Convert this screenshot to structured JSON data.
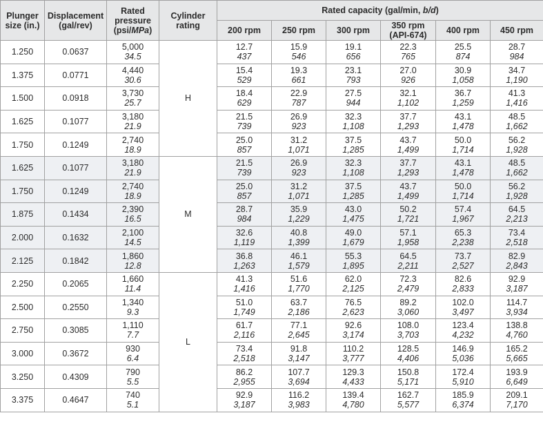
{
  "table": {
    "header": {
      "plunger_size": "Plunger size (in.)",
      "displacement": "Displacement (gal/rev)",
      "rated_pressure": [
        "Rated pressure (psi/",
        "MPa",
        ")"
      ],
      "cylinder_rating": "Cylinder rating",
      "rated_capacity": [
        "Rated capacity (gal/min, ",
        "b/d",
        ")"
      ],
      "speeds": [
        "200 rpm",
        "250 rpm",
        "300 rpm",
        "350 rpm (API-674)",
        "400 rpm",
        "450 rpm"
      ]
    },
    "groups": [
      {
        "rating": "H",
        "rows": [
          {
            "size": "1.250",
            "displacement": "0.0637",
            "pressure": [
              "5,000",
              "34.5"
            ],
            "capacity": [
              [
                "12.7",
                "437"
              ],
              [
                "15.9",
                "546"
              ],
              [
                "19.1",
                "656"
              ],
              [
                "22.3",
                "765"
              ],
              [
                "25.5",
                "874"
              ],
              [
                "28.7",
                "984"
              ]
            ]
          },
          {
            "size": "1.375",
            "displacement": "0.0771",
            "pressure": [
              "4,440",
              "30.6"
            ],
            "capacity": [
              [
                "15.4",
                "529"
              ],
              [
                "19.3",
                "661"
              ],
              [
                "23.1",
                "793"
              ],
              [
                "27.0",
                "926"
              ],
              [
                "30.9",
                "1,058"
              ],
              [
                "34.7",
                "1,190"
              ]
            ]
          },
          {
            "size": "1.500",
            "displacement": "0.0918",
            "pressure": [
              "3,730",
              "25.7"
            ],
            "capacity": [
              [
                "18.4",
                "629"
              ],
              [
                "22.9",
                "787"
              ],
              [
                "27.5",
                "944"
              ],
              [
                "32.1",
                "1,102"
              ],
              [
                "36.7",
                "1,259"
              ],
              [
                "41.3",
                "1,416"
              ]
            ]
          },
          {
            "size": "1.625",
            "displacement": "0.1077",
            "pressure": [
              "3,180",
              "21.9"
            ],
            "capacity": [
              [
                "21.5",
                "739"
              ],
              [
                "26.9",
                "923"
              ],
              [
                "32.3",
                "1,108"
              ],
              [
                "37.7",
                "1,293"
              ],
              [
                "43.1",
                "1,478"
              ],
              [
                "48.5",
                "1,662"
              ]
            ]
          },
          {
            "size": "1.750",
            "displacement": "0.1249",
            "pressure": [
              "2,740",
              "18.9"
            ],
            "capacity": [
              [
                "25.0",
                "857"
              ],
              [
                "31.2",
                "1,071"
              ],
              [
                "37.5",
                "1,285"
              ],
              [
                "43.7",
                "1,499"
              ],
              [
                "50.0",
                "1,714"
              ],
              [
                "56.2",
                "1,928"
              ]
            ]
          }
        ]
      },
      {
        "rating": "M",
        "rows": [
          {
            "size": "1.625",
            "displacement": "0.1077",
            "pressure": [
              "3,180",
              "21.9"
            ],
            "capacity": [
              [
                "21.5",
                "739"
              ],
              [
                "26.9",
                "923"
              ],
              [
                "32.3",
                "1,108"
              ],
              [
                "37.7",
                "1,293"
              ],
              [
                "43.1",
                "1,478"
              ],
              [
                "48.5",
                "1,662"
              ]
            ]
          },
          {
            "size": "1.750",
            "displacement": "0.1249",
            "pressure": [
              "2,740",
              "18.9"
            ],
            "capacity": [
              [
                "25.0",
                "857"
              ],
              [
                "31.2",
                "1,071"
              ],
              [
                "37.5",
                "1,285"
              ],
              [
                "43.7",
                "1,499"
              ],
              [
                "50.0",
                "1,714"
              ],
              [
                "56.2",
                "1,928"
              ]
            ]
          },
          {
            "size": "1.875",
            "displacement": "0.1434",
            "pressure": [
              "2,390",
              "16.5"
            ],
            "capacity": [
              [
                "28.7",
                "984"
              ],
              [
                "35.9",
                "1,229"
              ],
              [
                "43.0",
                "1,475"
              ],
              [
                "50.2",
                "1,721"
              ],
              [
                "57.4",
                "1,967"
              ],
              [
                "64.5",
                "2,213"
              ]
            ]
          },
          {
            "size": "2.000",
            "displacement": "0.1632",
            "pressure": [
              "2,100",
              "14.5"
            ],
            "capacity": [
              [
                "32.6",
                "1,119"
              ],
              [
                "40.8",
                "1,399"
              ],
              [
                "49.0",
                "1,679"
              ],
              [
                "57.1",
                "1,958"
              ],
              [
                "65.3",
                "2,238"
              ],
              [
                "73.4",
                "2,518"
              ]
            ]
          },
          {
            "size": "2.125",
            "displacement": "0.1842",
            "pressure": [
              "1,860",
              "12.8"
            ],
            "capacity": [
              [
                "36.8",
                "1,263"
              ],
              [
                "46.1",
                "1,579"
              ],
              [
                "55.3",
                "1,895"
              ],
              [
                "64.5",
                "2,211"
              ],
              [
                "73.7",
                "2,527"
              ],
              [
                "82.9",
                "2,843"
              ]
            ]
          }
        ]
      },
      {
        "rating": "L",
        "rows": [
          {
            "size": "2.250",
            "displacement": "0.2065",
            "pressure": [
              "1,660",
              "11.4"
            ],
            "capacity": [
              [
                "41.3",
                "1,416"
              ],
              [
                "51.6",
                "1,770"
              ],
              [
                "62.0",
                "2,125"
              ],
              [
                "72.3",
                "2,479"
              ],
              [
                "82.6",
                "2,833"
              ],
              [
                "92.9",
                "3,187"
              ]
            ]
          },
          {
            "size": "2.500",
            "displacement": "0.2550",
            "pressure": [
              "1,340",
              "9.3"
            ],
            "capacity": [
              [
                "51.0",
                "1,749"
              ],
              [
                "63.7",
                "2,186"
              ],
              [
                "76.5",
                "2,623"
              ],
              [
                "89.2",
                "3,060"
              ],
              [
                "102.0",
                "3,497"
              ],
              [
                "114.7",
                "3,934"
              ]
            ]
          },
          {
            "size": "2.750",
            "displacement": "0.3085",
            "pressure": [
              "1,110",
              "7.7"
            ],
            "capacity": [
              [
                "61.7",
                "2,116"
              ],
              [
                "77.1",
                "2,645"
              ],
              [
                "92.6",
                "3,174"
              ],
              [
                "108.0",
                "3,703"
              ],
              [
                "123.4",
                "4,232"
              ],
              [
                "138.8",
                "4,760"
              ]
            ]
          },
          {
            "size": "3.000",
            "displacement": "0.3672",
            "pressure": [
              "930",
              "6.4"
            ],
            "capacity": [
              [
                "73.4",
                "2,518"
              ],
              [
                "91.8",
                "3,147"
              ],
              [
                "110.2",
                "3,777"
              ],
              [
                "128.5",
                "4,406"
              ],
              [
                "146.9",
                "5,036"
              ],
              [
                "165.2",
                "5,665"
              ]
            ]
          },
          {
            "size": "3.250",
            "displacement": "0.4309",
            "pressure": [
              "790",
              "5.5"
            ],
            "capacity": [
              [
                "86.2",
                "2,955"
              ],
              [
                "107.7",
                "3,694"
              ],
              [
                "129.3",
                "4,433"
              ],
              [
                "150.8",
                "5,171"
              ],
              [
                "172.4",
                "5,910"
              ],
              [
                "193.9",
                "6,649"
              ]
            ]
          },
          {
            "size": "3.375",
            "displacement": "0.4647",
            "pressure": [
              "740",
              "5.1"
            ],
            "capacity": [
              [
                "92.9",
                "3,187"
              ],
              [
                "116.2",
                "3,983"
              ],
              [
                "139.4",
                "4,780"
              ],
              [
                "162.7",
                "5,577"
              ],
              [
                "185.9",
                "6,374"
              ],
              [
                "209.1",
                "7,170"
              ]
            ]
          }
        ]
      }
    ]
  }
}
